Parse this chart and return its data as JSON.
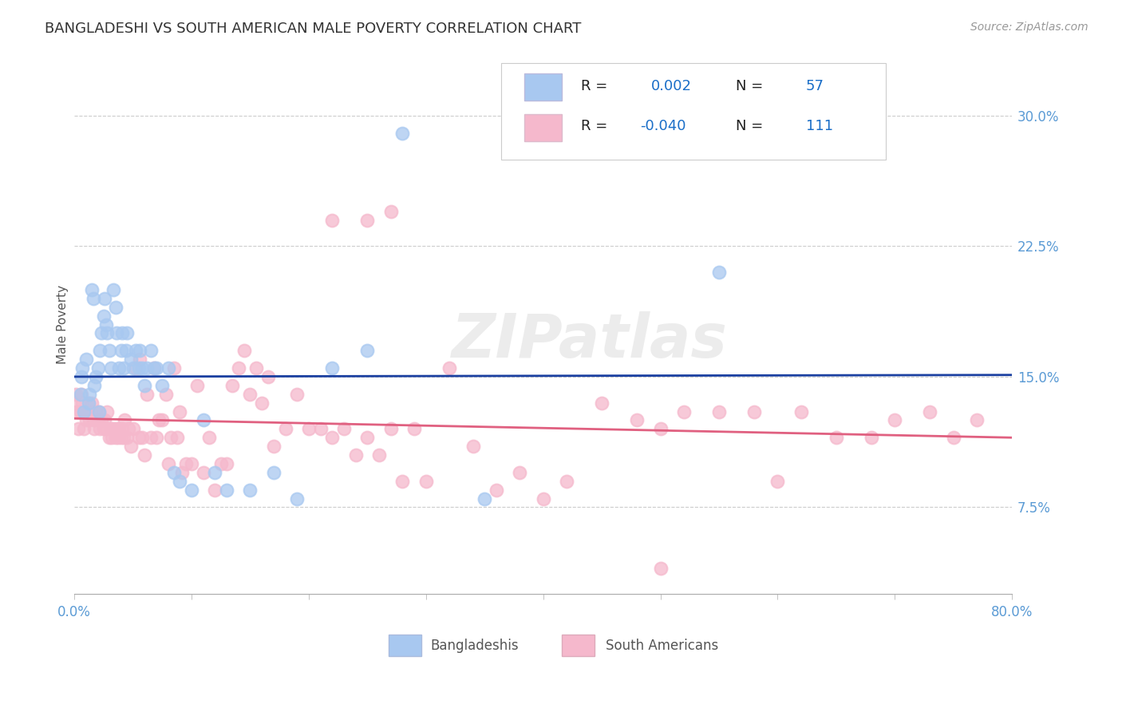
{
  "title": "BANGLADESHI VS SOUTH AMERICAN MALE POVERTY CORRELATION CHART",
  "source": "Source: ZipAtlas.com",
  "ylabel": "Male Poverty",
  "ytick_labels": [
    "7.5%",
    "15.0%",
    "22.5%",
    "30.0%"
  ],
  "ytick_values": [
    0.075,
    0.15,
    0.225,
    0.3
  ],
  "xlim": [
    0.0,
    0.8
  ],
  "ylim": [
    0.025,
    0.335
  ],
  "watermark": "ZIPatlas",
  "blue_color": "#A8C8F0",
  "pink_color": "#F5B8CC",
  "blue_line_color": "#1A3FA0",
  "pink_line_color": "#E06080",
  "title_color": "#333333",
  "axis_label_color": "#5B9BD5",
  "legend_text_color_blue": "#1A6EC8",
  "legend_text_color_dark": "#222222",
  "grid_color": "#CCCCCC",
  "bangladeshis_x": [
    0.005,
    0.006,
    0.007,
    0.008,
    0.01,
    0.012,
    0.013,
    0.015,
    0.016,
    0.017,
    0.018,
    0.02,
    0.021,
    0.022,
    0.023,
    0.025,
    0.026,
    0.027,
    0.028,
    0.03,
    0.031,
    0.033,
    0.035,
    0.036,
    0.038,
    0.04,
    0.041,
    0.042,
    0.044,
    0.045,
    0.048,
    0.05,
    0.052,
    0.055,
    0.056,
    0.058,
    0.06,
    0.062,
    0.065,
    0.068,
    0.07,
    0.075,
    0.08,
    0.085,
    0.09,
    0.1,
    0.11,
    0.12,
    0.13,
    0.15,
    0.17,
    0.19,
    0.22,
    0.25,
    0.28,
    0.35,
    0.55
  ],
  "bangladeshis_y": [
    0.14,
    0.15,
    0.155,
    0.13,
    0.16,
    0.135,
    0.14,
    0.2,
    0.195,
    0.145,
    0.15,
    0.155,
    0.13,
    0.165,
    0.175,
    0.185,
    0.195,
    0.18,
    0.175,
    0.165,
    0.155,
    0.2,
    0.19,
    0.175,
    0.155,
    0.165,
    0.175,
    0.155,
    0.165,
    0.175,
    0.16,
    0.155,
    0.165,
    0.155,
    0.165,
    0.155,
    0.145,
    0.155,
    0.165,
    0.155,
    0.155,
    0.145,
    0.155,
    0.095,
    0.09,
    0.085,
    0.125,
    0.095,
    0.085,
    0.085,
    0.095,
    0.08,
    0.155,
    0.165,
    0.29,
    0.08,
    0.21
  ],
  "south_americans_x": [
    0.0,
    0.001,
    0.002,
    0.003,
    0.005,
    0.006,
    0.007,
    0.008,
    0.009,
    0.01,
    0.011,
    0.012,
    0.013,
    0.014,
    0.015,
    0.016,
    0.017,
    0.018,
    0.02,
    0.021,
    0.022,
    0.023,
    0.025,
    0.026,
    0.027,
    0.028,
    0.03,
    0.031,
    0.032,
    0.033,
    0.035,
    0.036,
    0.037,
    0.038,
    0.04,
    0.041,
    0.042,
    0.043,
    0.045,
    0.046,
    0.048,
    0.05,
    0.052,
    0.055,
    0.056,
    0.058,
    0.06,
    0.062,
    0.065,
    0.068,
    0.07,
    0.072,
    0.075,
    0.078,
    0.08,
    0.082,
    0.085,
    0.088,
    0.09,
    0.092,
    0.095,
    0.1,
    0.105,
    0.11,
    0.115,
    0.12,
    0.125,
    0.13,
    0.135,
    0.14,
    0.145,
    0.15,
    0.155,
    0.16,
    0.165,
    0.17,
    0.18,
    0.19,
    0.2,
    0.21,
    0.22,
    0.23,
    0.24,
    0.25,
    0.26,
    0.27,
    0.28,
    0.29,
    0.3,
    0.32,
    0.34,
    0.36,
    0.38,
    0.4,
    0.42,
    0.45,
    0.48,
    0.5,
    0.52,
    0.55,
    0.58,
    0.6,
    0.62,
    0.65,
    0.68,
    0.7,
    0.73,
    0.75,
    0.77,
    0.5,
    0.22,
    0.25,
    0.27
  ],
  "south_americans_y": [
    0.135,
    0.14,
    0.13,
    0.12,
    0.13,
    0.14,
    0.135,
    0.12,
    0.13,
    0.125,
    0.13,
    0.135,
    0.125,
    0.13,
    0.135,
    0.125,
    0.12,
    0.13,
    0.125,
    0.13,
    0.12,
    0.125,
    0.12,
    0.125,
    0.12,
    0.13,
    0.115,
    0.12,
    0.115,
    0.12,
    0.115,
    0.12,
    0.115,
    0.12,
    0.115,
    0.12,
    0.115,
    0.125,
    0.115,
    0.12,
    0.11,
    0.12,
    0.155,
    0.115,
    0.16,
    0.115,
    0.105,
    0.14,
    0.115,
    0.155,
    0.115,
    0.125,
    0.125,
    0.14,
    0.1,
    0.115,
    0.155,
    0.115,
    0.13,
    0.095,
    0.1,
    0.1,
    0.145,
    0.095,
    0.115,
    0.085,
    0.1,
    0.1,
    0.145,
    0.155,
    0.165,
    0.14,
    0.155,
    0.135,
    0.15,
    0.11,
    0.12,
    0.14,
    0.12,
    0.12,
    0.115,
    0.12,
    0.105,
    0.115,
    0.105,
    0.12,
    0.09,
    0.12,
    0.09,
    0.155,
    0.11,
    0.085,
    0.095,
    0.08,
    0.09,
    0.135,
    0.125,
    0.12,
    0.13,
    0.13,
    0.13,
    0.09,
    0.13,
    0.115,
    0.115,
    0.125,
    0.13,
    0.115,
    0.125,
    0.04,
    0.24,
    0.24,
    0.245
  ]
}
